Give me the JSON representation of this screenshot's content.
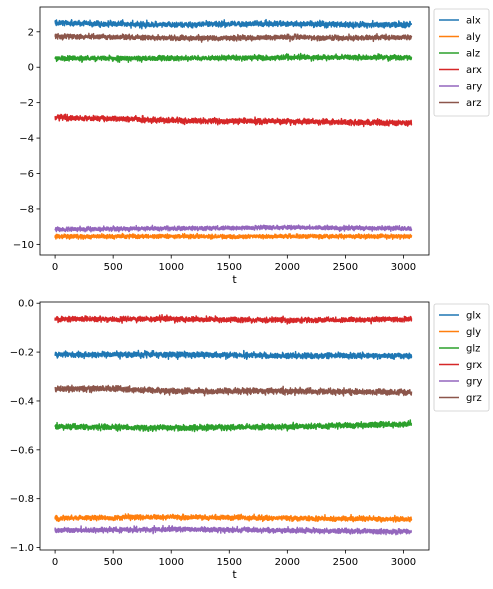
{
  "chart_data": [
    {
      "type": "line",
      "xlabel": "t",
      "ylabel": "",
      "xlim": [
        -130,
        3220
      ],
      "ylim": [
        -10.6,
        3.4
      ],
      "xticks": [
        0,
        500,
        1000,
        1500,
        2000,
        2500,
        3000
      ],
      "yticks": [
        2,
        0,
        -2,
        -4,
        -6,
        -8,
        -10
      ],
      "ytick_labels": [
        "2",
        "0",
        "−2",
        "−4",
        "−6",
        "−8",
        "−10"
      ],
      "grid": false,
      "legend_position": "outside upper right",
      "n_points": 3070,
      "series": [
        {
          "name": "alx",
          "color": "#1f77b4",
          "mean": 2.45,
          "noise": 0.09,
          "trend": [
            [
              0,
              2.5
            ],
            [
              500,
              2.45
            ],
            [
              1000,
              2.4
            ],
            [
              1500,
              2.45
            ],
            [
              2000,
              2.45
            ],
            [
              2500,
              2.4
            ],
            [
              3070,
              2.4
            ]
          ]
        },
        {
          "name": "aly",
          "color": "#ff7f0e",
          "mean": -9.55,
          "noise": 0.07,
          "trend": [
            [
              0,
              -9.55
            ],
            [
              1000,
              -9.55
            ],
            [
              2000,
              -9.55
            ],
            [
              3070,
              -9.55
            ]
          ]
        },
        {
          "name": "alz",
          "color": "#2ca02c",
          "mean": 0.55,
          "noise": 0.08,
          "trend": [
            [
              0,
              0.5
            ],
            [
              1000,
              0.5
            ],
            [
              2000,
              0.55
            ],
            [
              3070,
              0.55
            ]
          ]
        },
        {
          "name": "arx",
          "color": "#d62728",
          "mean": -3.0,
          "noise": 0.09,
          "trend": [
            [
              0,
              -2.85
            ],
            [
              500,
              -2.9
            ],
            [
              1000,
              -3.0
            ],
            [
              1500,
              -3.05
            ],
            [
              2000,
              -3.05
            ],
            [
              2500,
              -3.1
            ],
            [
              3070,
              -3.15
            ]
          ]
        },
        {
          "name": "ary",
          "color": "#9467bd",
          "mean": -9.1,
          "noise": 0.07,
          "trend": [
            [
              0,
              -9.15
            ],
            [
              1000,
              -9.1
            ],
            [
              2000,
              -9.05
            ],
            [
              3070,
              -9.1
            ]
          ]
        },
        {
          "name": "arz",
          "color": "#8c564b",
          "mean": 1.7,
          "noise": 0.08,
          "trend": [
            [
              0,
              1.75
            ],
            [
              500,
              1.7
            ],
            [
              1000,
              1.65
            ],
            [
              1500,
              1.65
            ],
            [
              2000,
              1.7
            ],
            [
              2500,
              1.65
            ],
            [
              3070,
              1.7
            ]
          ]
        }
      ]
    },
    {
      "type": "line",
      "xlabel": "t",
      "ylabel": "",
      "xlim": [
        -130,
        3220
      ],
      "ylim": [
        -1.01,
        0.005
      ],
      "xticks": [
        0,
        500,
        1000,
        1500,
        2000,
        2500,
        3000
      ],
      "yticks": [
        0.0,
        -0.2,
        -0.4,
        -0.6,
        -0.8,
        -1.0
      ],
      "ytick_labels": [
        "0.0",
        "−0.2",
        "−0.4",
        "−0.6",
        "−0.8",
        "−1.0"
      ],
      "grid": false,
      "legend_position": "outside upper right",
      "n_points": 3070,
      "series": [
        {
          "name": "glx",
          "color": "#1f77b4",
          "mean": -0.215,
          "noise": 0.007,
          "trend": [
            [
              0,
              -0.21
            ],
            [
              1000,
              -0.21
            ],
            [
              2000,
              -0.215
            ],
            [
              3070,
              -0.215
            ]
          ]
        },
        {
          "name": "gly",
          "color": "#ff7f0e",
          "mean": -0.88,
          "noise": 0.006,
          "trend": [
            [
              0,
              -0.88
            ],
            [
              1000,
              -0.875
            ],
            [
              2000,
              -0.88
            ],
            [
              3070,
              -0.885
            ]
          ]
        },
        {
          "name": "glz",
          "color": "#2ca02c",
          "mean": -0.505,
          "noise": 0.007,
          "trend": [
            [
              0,
              -0.505
            ],
            [
              1000,
              -0.51
            ],
            [
              2000,
              -0.505
            ],
            [
              3070,
              -0.495
            ]
          ]
        },
        {
          "name": "grx",
          "color": "#d62728",
          "mean": -0.07,
          "noise": 0.006,
          "trend": [
            [
              0,
              -0.065
            ],
            [
              1000,
              -0.065
            ],
            [
              2000,
              -0.07
            ],
            [
              3070,
              -0.065
            ]
          ]
        },
        {
          "name": "gry",
          "color": "#9467bd",
          "mean": -0.93,
          "noise": 0.006,
          "trend": [
            [
              0,
              -0.93
            ],
            [
              1000,
              -0.925
            ],
            [
              2000,
              -0.93
            ],
            [
              3070,
              -0.935
            ]
          ]
        },
        {
          "name": "grz",
          "color": "#8c564b",
          "mean": -0.36,
          "noise": 0.007,
          "trend": [
            [
              0,
              -0.35
            ],
            [
              500,
              -0.35
            ],
            [
              1000,
              -0.36
            ],
            [
              2000,
              -0.36
            ],
            [
              3070,
              -0.365
            ]
          ]
        }
      ]
    }
  ]
}
